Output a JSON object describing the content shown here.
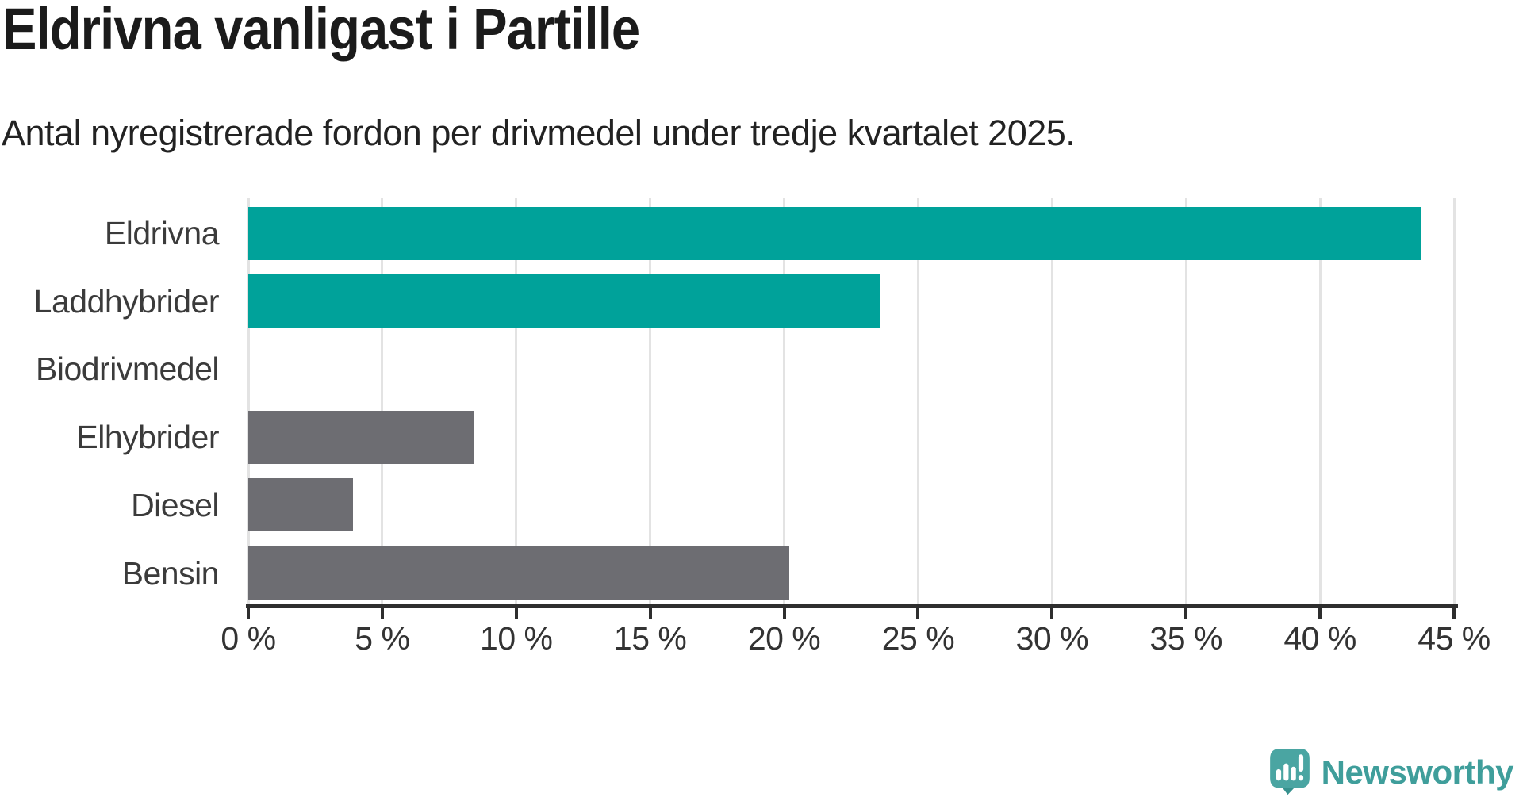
{
  "header": {
    "title": "Eldrivna vanligast i Partille",
    "subtitle": "Antal nyregistrerade fordon per drivmedel under tredje kvartalet 2025."
  },
  "chart_data": {
    "type": "bar",
    "orientation": "horizontal",
    "title": "Eldrivna vanligast i Partille",
    "subtitle": "Antal nyregistrerade fordon per drivmedel under tredje kvartalet 2025.",
    "categories": [
      "Eldrivna",
      "Laddhybrider",
      "Biodrivmedel",
      "Elhybrider",
      "Diesel",
      "Bensin"
    ],
    "values": [
      43.8,
      23.6,
      0,
      8.4,
      3.9,
      20.2
    ],
    "unit": "%",
    "bar_colors": [
      "#00a29a",
      "#00a29a",
      "#00a29a",
      "#6d6d72",
      "#6d6d72",
      "#6d6d72"
    ],
    "xlabel": "",
    "ylabel": "",
    "xlim": [
      0,
      45
    ],
    "x_tick_step": 5,
    "x_tick_labels": [
      "0 %",
      "5 %",
      "10 %",
      "15 %",
      "20 %",
      "25 %",
      "30 %",
      "35 %",
      "40 %",
      "45 %"
    ],
    "grid": "vertical",
    "legend": "none",
    "accent_color": "#00a29a",
    "neutral_color": "#6d6d72",
    "gridline_color": "#e3e3e3",
    "axis_color": "#2e2e2e"
  },
  "footer": {
    "brand": "Newsworthy",
    "logo_bubble_color": "#4aa5a2",
    "logo_tail_shade": "#37918e",
    "logo_text_color": "#3f9e9b"
  }
}
